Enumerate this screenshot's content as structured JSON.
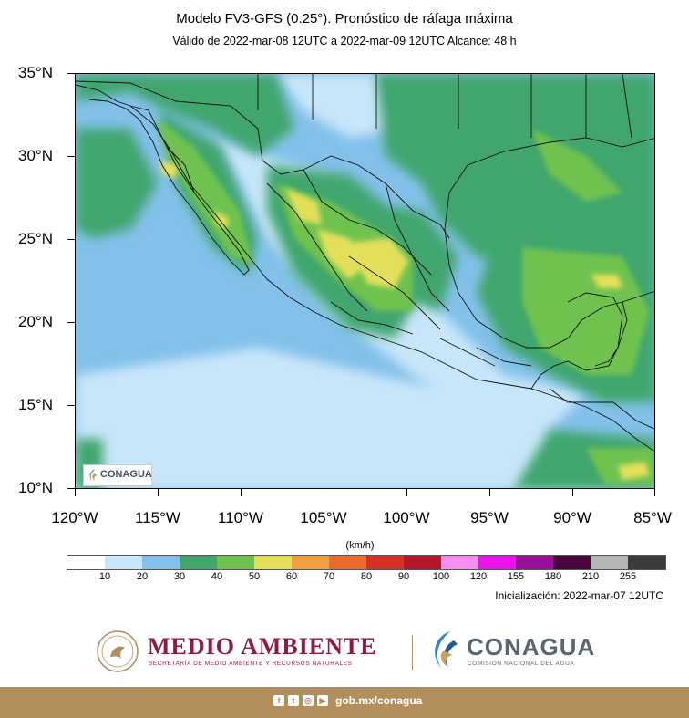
{
  "header": {
    "title": "Modelo FV3-GFS (0.25°). Pronóstico de ráfaga máxima",
    "subtitle": "Válido de 2022-mar-08 12UTC a 2022-mar-09 12UTC    Alcance: 48 h"
  },
  "map": {
    "lat_labels": [
      "35°N",
      "30°N",
      "25°N",
      "20°N",
      "15°N",
      "10°N"
    ],
    "lon_labels": [
      "120°W",
      "115°W",
      "110°W",
      "105°W",
      "100°W",
      "95°W",
      "90°W",
      "85°W"
    ],
    "inset_logo": "CONAGUA",
    "inset_logo_icon": "conagua-bird-icon"
  },
  "legend": {
    "unit": "(km/h)",
    "labels": [
      "10",
      "20",
      "30",
      "40",
      "50",
      "60",
      "70",
      "80",
      "90",
      "100",
      "120",
      "155",
      "180",
      "210",
      "255"
    ],
    "colors": [
      "#ffffff",
      "#c8e6fa",
      "#83c1ea",
      "#3fa66e",
      "#70c24f",
      "#e2e05a",
      "#f2a03e",
      "#ec6a2b",
      "#d93026",
      "#b5162b",
      "#f78ef0",
      "#ee10ee",
      "#9a0f9a",
      "#4a063d",
      "#b5b5b5",
      "#3a3a3a"
    ]
  },
  "init_text": "Inicialización: 2022-mar-07 12UTC",
  "logos": {
    "medio_ambiente": "MEDIO AMBIENTE",
    "medio_ambiente_sub": "SECRETARÍA DE MEDIO AMBIENTE Y RECURSOS NATURALES",
    "conagua": "CONAGUA",
    "conagua_sub": "COMISIÓN NACIONAL DEL AGUA"
  },
  "footer": {
    "url": "gob.mx/conagua",
    "social_icons": [
      "facebook-icon",
      "twitter-icon",
      "instagram-icon",
      "youtube-icon"
    ]
  }
}
